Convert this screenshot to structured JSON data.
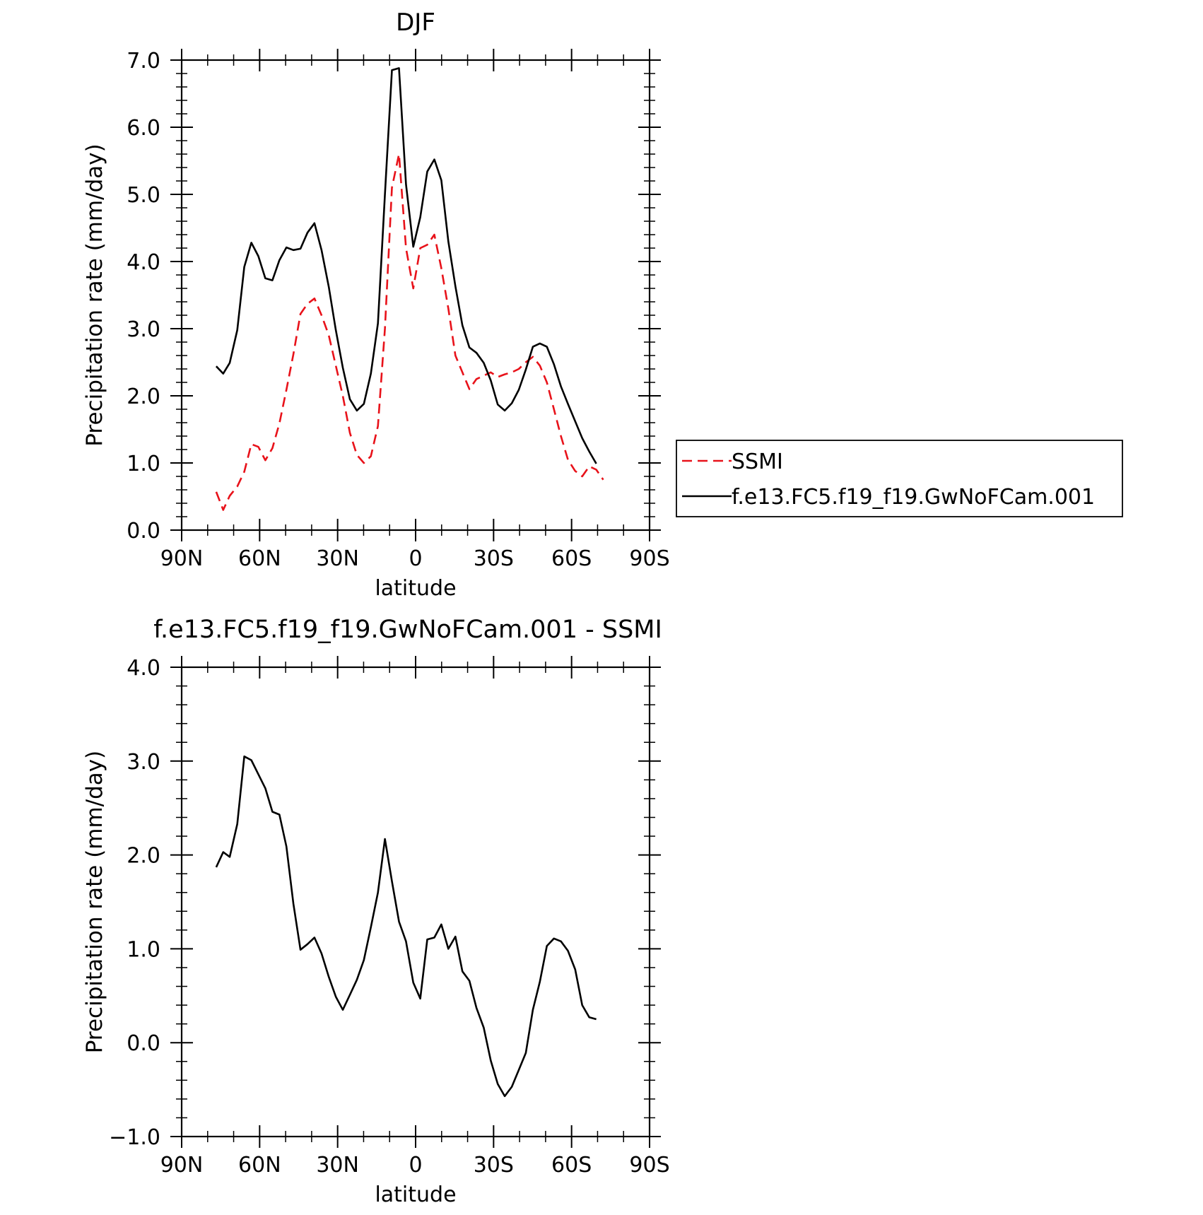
{
  "chart_data": [
    {
      "type": "line",
      "title": "DJF",
      "xlabel": "latitude",
      "ylabel": "Precipitation rate (mm/day)",
      "xlim": [
        90,
        -90
      ],
      "ylim": [
        0,
        7
      ],
      "x_ticks": [
        {
          "value": 90,
          "label": "90N"
        },
        {
          "value": 60,
          "label": "60N"
        },
        {
          "value": 30,
          "label": "30N"
        },
        {
          "value": 0,
          "label": "0"
        },
        {
          "value": -30,
          "label": "30S"
        },
        {
          "value": -60,
          "label": "60S"
        },
        {
          "value": -90,
          "label": "90S"
        }
      ],
      "y_ticks": [
        {
          "value": 0,
          "label": "0.0"
        },
        {
          "value": 1,
          "label": "1.0"
        },
        {
          "value": 2,
          "label": "2.0"
        },
        {
          "value": 3,
          "label": "3.0"
        },
        {
          "value": 4,
          "label": "4.0"
        },
        {
          "value": 5,
          "label": "5.0"
        },
        {
          "value": 6,
          "label": "6.0"
        },
        {
          "value": 7,
          "label": "7.0"
        }
      ],
      "legend": "right",
      "series": [
        {
          "name": "SSMI",
          "color": "#e8121a",
          "dash": "dashed",
          "x": [
            76.7,
            74,
            71.5,
            68.6,
            65.9,
            63.2,
            60.5,
            57.8,
            55.1,
            52.4,
            49.7,
            47,
            44.3,
            41.6,
            38.9,
            36.2,
            33.4,
            30.7,
            28,
            25.3,
            22.6,
            19.9,
            17.2,
            14.5,
            11.8,
            9.1,
            6.4,
            3.7,
            0.9,
            -1.8,
            -4.5,
            -7.2,
            -9.9,
            -12.6,
            -15.3,
            -18,
            -20.7,
            -23.4,
            -26.2,
            -28.9,
            -31.6,
            -34.3,
            -37,
            -39.7,
            -42.4,
            -45.1,
            -47.8,
            -50.5,
            -53.2,
            -55.9,
            -58.6,
            -61.4,
            -64.1,
            -66.8,
            -69.5,
            -72.2,
            -74.9
          ],
          "y": [
            0.57,
            0.3,
            0.51,
            0.65,
            0.87,
            1.28,
            1.24,
            1.04,
            1.22,
            1.59,
            2.09,
            2.62,
            3.22,
            3.37,
            3.45,
            3.2,
            2.9,
            2.45,
            2.0,
            1.45,
            1.12,
            1.0,
            1.1,
            1.55,
            3.0,
            5.1,
            5.6,
            4.2,
            3.6,
            4.2,
            4.25,
            4.4,
            3.9,
            3.3,
            2.6,
            2.35,
            2.1,
            2.25,
            2.3,
            2.35,
            2.28,
            2.32,
            2.35,
            2.4,
            2.5,
            2.58,
            2.45,
            2.2,
            1.8,
            1.4,
            1.05,
            0.88,
            0.8,
            0.95,
            0.9,
            0.75,
            null
          ]
        },
        {
          "name": "f.e13.FC5.f19_f19.GwNoFCam.001",
          "color": "#000000",
          "dash": "solid",
          "x": [
            76.7,
            74,
            71.5,
            68.6,
            65.9,
            63.2,
            60.5,
            57.8,
            55.1,
            52.4,
            49.7,
            47,
            44.3,
            41.6,
            38.9,
            36.2,
            33.4,
            30.7,
            28,
            25.3,
            22.6,
            19.9,
            17.2,
            14.5,
            11.8,
            9.1,
            6.4,
            3.7,
            0.9,
            -1.8,
            -4.5,
            -7.2,
            -9.9,
            -12.6,
            -15.3,
            -18,
            -20.7,
            -23.4,
            -26.2,
            -28.9,
            -31.6,
            -34.3,
            -37,
            -39.7,
            -42.4,
            -45.1,
            -47.8,
            -50.5,
            -53.2,
            -55.9,
            -58.6,
            -61.4,
            -64.1,
            -66.8,
            -69.5,
            -72.2,
            -74.9
          ],
          "y": [
            2.44,
            2.33,
            2.49,
            2.98,
            3.92,
            4.28,
            4.08,
            3.75,
            3.72,
            4.02,
            4.21,
            4.17,
            4.19,
            4.43,
            4.57,
            4.17,
            3.62,
            2.98,
            2.42,
            1.95,
            1.78,
            1.88,
            2.33,
            3.08,
            5.0,
            6.85,
            6.88,
            5.15,
            4.22,
            4.66,
            5.34,
            5.52,
            5.21,
            4.3,
            3.63,
            3.05,
            2.72,
            2.64,
            2.49,
            2.23,
            1.87,
            1.78,
            1.89,
            2.09,
            2.39,
            2.73,
            2.78,
            2.73,
            2.47,
            2.14,
            1.88,
            1.62,
            1.37,
            1.17,
            0.99,
            null,
            null
          ]
        }
      ]
    },
    {
      "type": "line",
      "title": "f.e13.FC5.f19_f19.GwNoFCam.001 - SSMI",
      "xlabel": "latitude",
      "ylabel": "Precipitation rate (mm/day)",
      "xlim": [
        90,
        -90
      ],
      "ylim": [
        -1,
        4
      ],
      "x_ticks": [
        {
          "value": 90,
          "label": "90N"
        },
        {
          "value": 60,
          "label": "60N"
        },
        {
          "value": 30,
          "label": "30N"
        },
        {
          "value": 0,
          "label": "0"
        },
        {
          "value": -30,
          "label": "30S"
        },
        {
          "value": -60,
          "label": "60S"
        },
        {
          "value": -90,
          "label": "90S"
        }
      ],
      "y_ticks": [
        {
          "value": -1,
          "label": "−1.0"
        },
        {
          "value": 0,
          "label": "0.0"
        },
        {
          "value": 1,
          "label": "1.0"
        },
        {
          "value": 2,
          "label": "2.0"
        },
        {
          "value": 3,
          "label": "3.0"
        },
        {
          "value": 4,
          "label": "4.0"
        }
      ],
      "series": [
        {
          "name": "",
          "color": "#000000",
          "dash": "solid",
          "x": [
            76.7,
            74,
            71.5,
            68.6,
            65.9,
            63.2,
            60.5,
            57.8,
            55.1,
            52.4,
            49.7,
            47,
            44.3,
            41.6,
            38.9,
            36.2,
            33.4,
            30.7,
            28,
            25.3,
            22.6,
            19.9,
            17.2,
            14.5,
            11.8,
            9.1,
            6.4,
            3.7,
            0.9,
            -1.8,
            -4.5,
            -7.2,
            -9.9,
            -12.6,
            -15.3,
            -18,
            -20.7,
            -23.4,
            -26.2,
            -28.9,
            -31.6,
            -34.3,
            -37,
            -39.7,
            -42.4,
            -45.1,
            -47.8,
            -50.5,
            -53.2,
            -55.9,
            -58.6,
            -61.4,
            -64.1,
            -66.8,
            -69.5,
            -72.2,
            -74.9
          ],
          "y": [
            1.87,
            2.03,
            1.98,
            2.33,
            3.05,
            3.01,
            2.86,
            2.71,
            2.46,
            2.43,
            2.09,
            1.48,
            0.99,
            1.05,
            1.12,
            0.95,
            0.7,
            0.49,
            0.35,
            0.51,
            0.67,
            0.88,
            1.23,
            1.6,
            2.17,
            1.72,
            1.29,
            1.08,
            0.64,
            0.47,
            1.1,
            1.12,
            1.26,
            1.0,
            1.13,
            0.76,
            0.66,
            0.37,
            0.16,
            -0.19,
            -0.44,
            -0.57,
            -0.47,
            -0.29,
            -0.11,
            0.35,
            0.65,
            1.03,
            1.11,
            1.08,
            0.98,
            0.78,
            0.4,
            0.27,
            0.25,
            null,
            null
          ]
        }
      ]
    }
  ]
}
